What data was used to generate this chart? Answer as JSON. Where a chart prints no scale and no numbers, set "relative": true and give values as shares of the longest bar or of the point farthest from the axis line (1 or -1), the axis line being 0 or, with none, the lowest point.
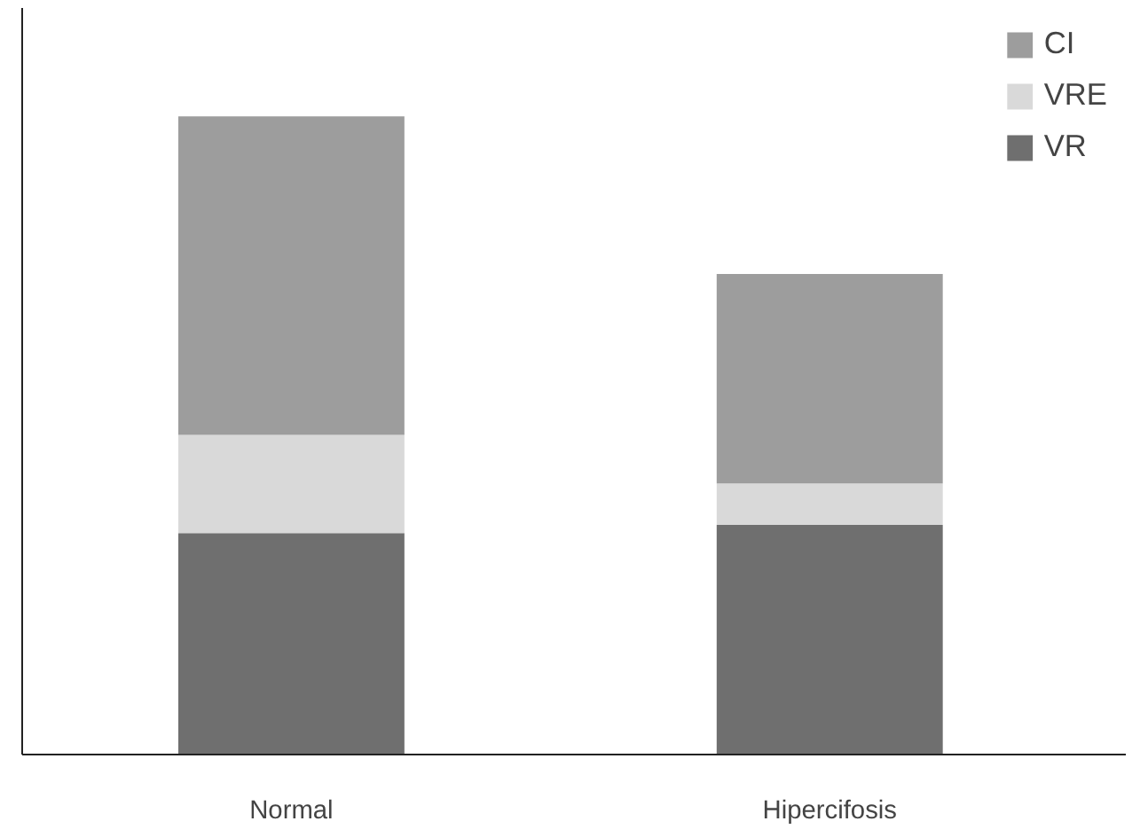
{
  "chart_data": {
    "type": "bar",
    "stacked": true,
    "relative": true,
    "categories": [
      "Normal",
      "Hipercifosis"
    ],
    "series": [
      {
        "name": "VR",
        "color": "#6f6f6f",
        "values": [
          0.347,
          0.36
        ]
      },
      {
        "name": "VRE",
        "color": "#d9d9d9",
        "values": [
          0.154,
          0.065
        ]
      },
      {
        "name": "CI",
        "color": "#9d9d9d",
        "values": [
          0.499,
          0.328
        ]
      }
    ],
    "legend": "top right",
    "grid": false
  }
}
